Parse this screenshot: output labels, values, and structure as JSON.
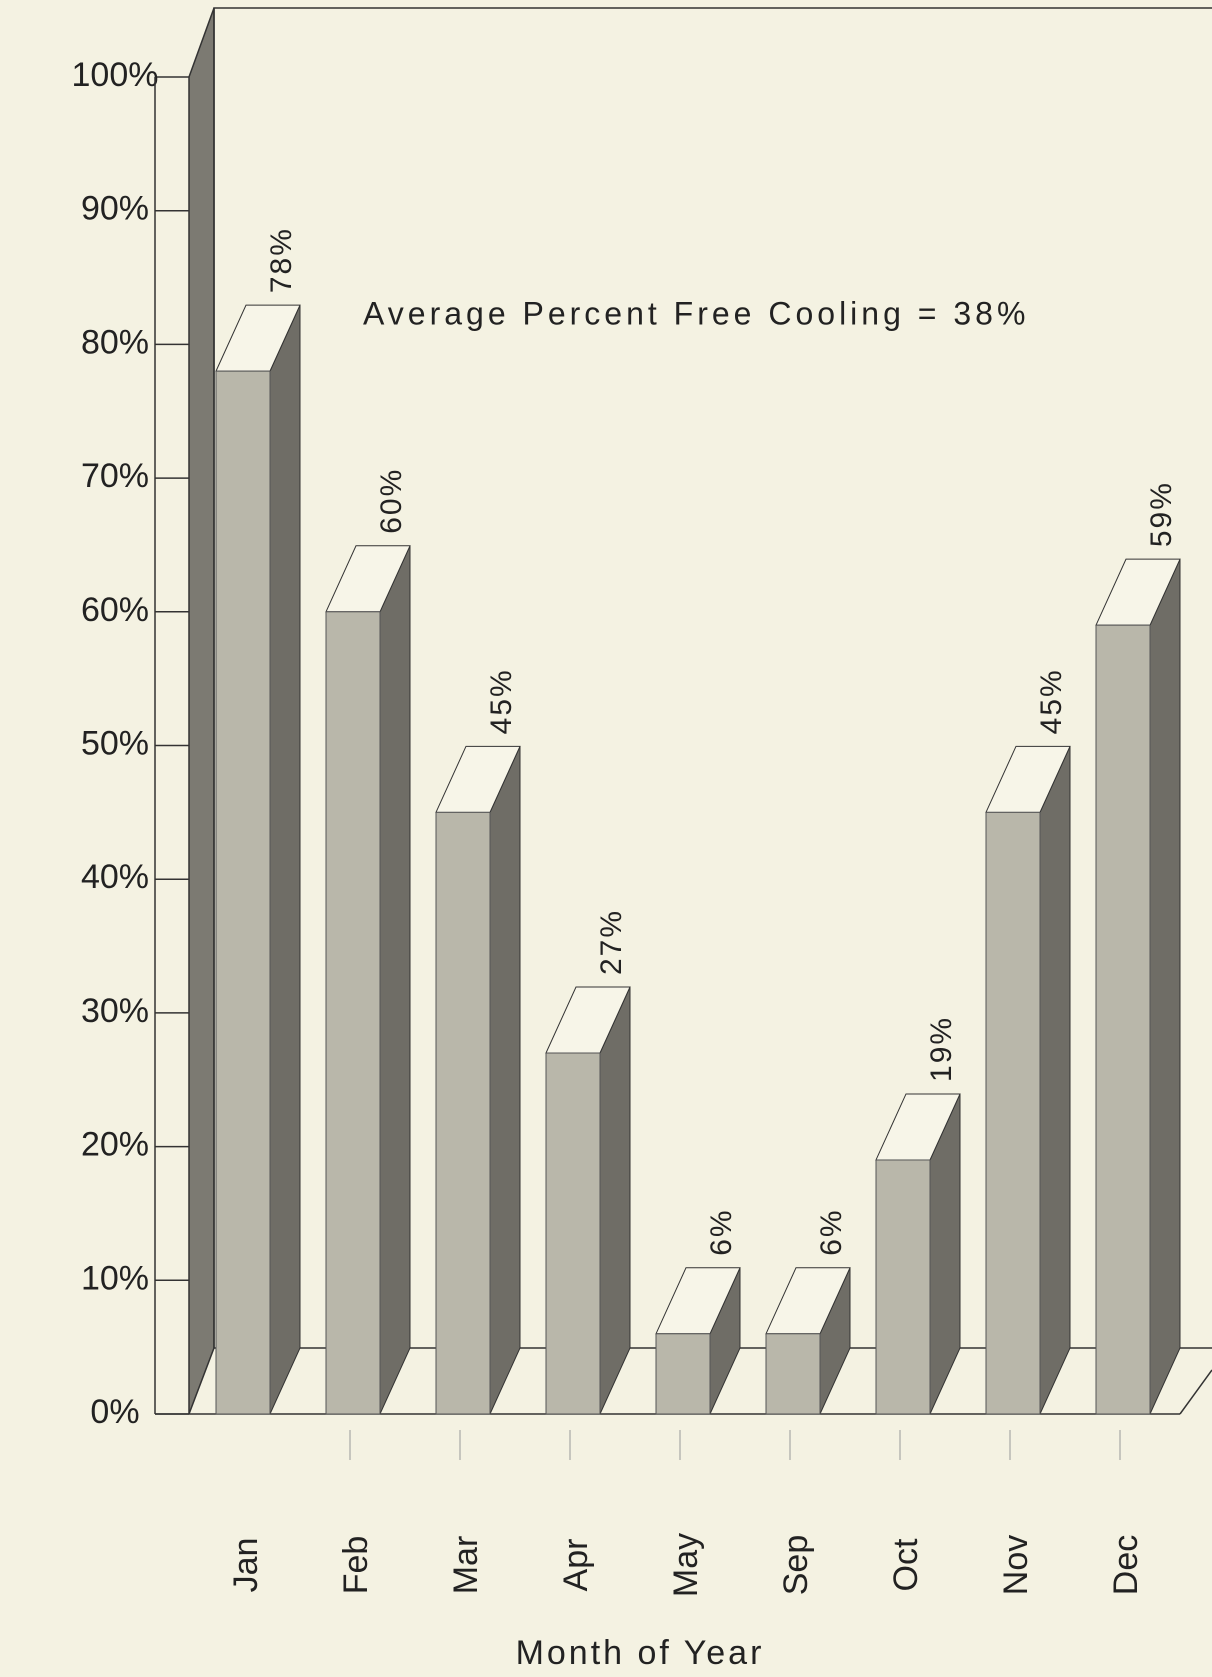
{
  "chart_data": {
    "type": "bar3d",
    "annotation": "Average Percent Free Cooling = 38%",
    "x_label": "Month of Year",
    "categories": [
      "Jan",
      "Feb",
      "Mar",
      "Apr",
      "May",
      "Sep",
      "Oct",
      "Nov",
      "Dec"
    ],
    "values": [
      78,
      60,
      45,
      27,
      6,
      6,
      19,
      45,
      59
    ],
    "value_labels": [
      "78%",
      "60%",
      "45%",
      "27%",
      "6%",
      "6%",
      "19%",
      "45%",
      "59%"
    ],
    "color": "#b9b7aa",
    "ylim": [
      0,
      100
    ],
    "yticks": [
      {
        "value": 0,
        "label": "0%"
      },
      {
        "value": 10,
        "label": "10%"
      },
      {
        "value": 20,
        "label": "20%"
      },
      {
        "value": 30,
        "label": "30%"
      },
      {
        "value": 40,
        "label": "40%"
      },
      {
        "value": 50,
        "label": "50%"
      },
      {
        "value": 60,
        "label": "60%"
      },
      {
        "value": 70,
        "label": "70%"
      },
      {
        "value": 80,
        "label": "80%"
      },
      {
        "value": 90,
        "label": "90%"
      },
      {
        "value": 100,
        "label": "100%"
      }
    ],
    "grid": false
  }
}
